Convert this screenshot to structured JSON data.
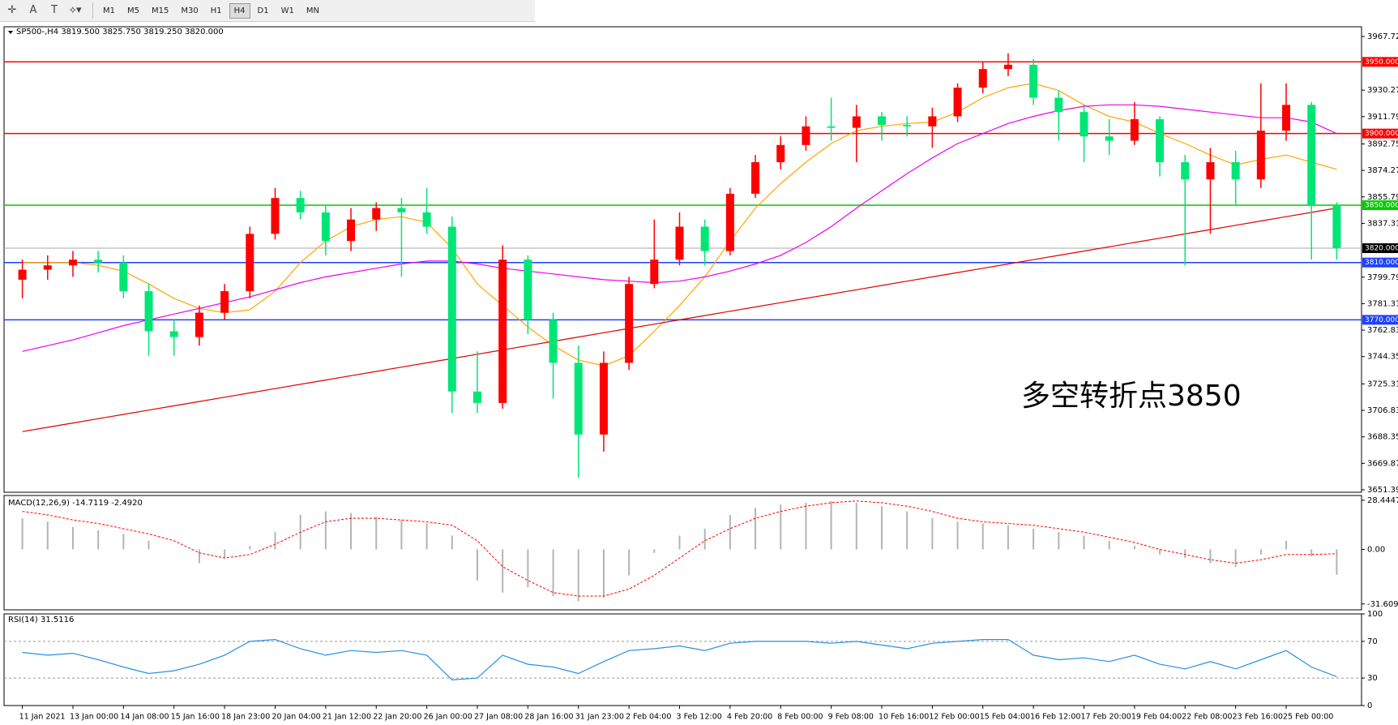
{
  "toolbar": {
    "buttons": [
      "M1",
      "M5",
      "M15",
      "M30",
      "H1",
      "H4",
      "D1",
      "W1",
      "MN"
    ],
    "active": "H4"
  },
  "chart_data": [
    {
      "type": "candlestick",
      "title": "SP500-,H4  3819.500 3825.750 3819.250 3820.000",
      "annotation": "多空转折点3850",
      "up_color": "#ff0000",
      "down_color": "#00e676",
      "categories": [
        "11 Jan 2021",
        null,
        "13 Jan 00:00",
        null,
        "14 Jan 08:00",
        null,
        "15 Jan 16:00",
        null,
        "18 Jan 23:00",
        null,
        "20 Jan 04:00",
        null,
        "21 Jan 12:00",
        null,
        "22 Jan 20:00",
        null,
        "26 Jan 00:00",
        null,
        "27 Jan 08:00",
        null,
        "28 Jan 16:00",
        null,
        "31 Jan 23:00",
        null,
        "2 Feb 04:00",
        null,
        "3 Feb 12:00",
        null,
        "4 Feb 20:00",
        null,
        "8 Feb 00:00",
        null,
        "9 Feb 08:00",
        null,
        "10 Feb 16:00",
        null,
        "12 Feb 00:00",
        null,
        "15 Feb 04:00",
        null,
        "16 Feb 12:00",
        null,
        "17 Feb 20:00",
        null,
        "19 Feb 04:00",
        null,
        "22 Feb 08:00",
        null,
        "23 Feb 16:00",
        null,
        "25 Feb 00:00",
        null,
        null
      ],
      "open": [
        3798,
        3805,
        3808,
        3812,
        3810,
        3790,
        3762,
        3758,
        3775,
        3790,
        3830,
        3855,
        3845,
        3825,
        3840,
        3848,
        3845,
        3835,
        3720,
        3712,
        3812,
        3770,
        3740,
        3690,
        3740,
        3795,
        3812,
        3835,
        3818,
        3858,
        3880,
        3892,
        3905,
        3904,
        3912,
        3906,
        3905,
        3912,
        3932,
        3945,
        3948,
        3925,
        3915,
        3898,
        3895,
        3910,
        3880,
        3868,
        3880,
        3868,
        3902,
        3920,
        3850
      ],
      "high": [
        3812,
        3815,
        3818,
        3818,
        3815,
        3795,
        3770,
        3780,
        3795,
        3835,
        3862,
        3860,
        3850,
        3848,
        3852,
        3855,
        3862,
        3842,
        3748,
        3822,
        3815,
        3775,
        3752,
        3748,
        3800,
        3840,
        3845,
        3840,
        3862,
        3885,
        3898,
        3912,
        3925,
        3920,
        3915,
        3912,
        3918,
        3935,
        3950,
        3956,
        3952,
        3930,
        3920,
        3910,
        3922,
        3912,
        3885,
        3890,
        3888,
        3935,
        3935,
        3922,
        3852
      ],
      "low": [
        3785,
        3798,
        3800,
        3803,
        3785,
        3745,
        3745,
        3752,
        3770,
        3785,
        3826,
        3840,
        3815,
        3818,
        3832,
        3800,
        3830,
        3705,
        3705,
        3708,
        3760,
        3715,
        3660,
        3678,
        3735,
        3792,
        3808,
        3808,
        3815,
        3855,
        3875,
        3888,
        3895,
        3880,
        3895,
        3898,
        3890,
        3908,
        3928,
        3940,
        3920,
        3895,
        3880,
        3885,
        3892,
        3870,
        3808,
        3830,
        3850,
        3862,
        3895,
        3812,
        3812
      ],
      "close": [
        3805,
        3808,
        3812,
        3810,
        3790,
        3762,
        3758,
        3775,
        3790,
        3830,
        3855,
        3845,
        3825,
        3840,
        3848,
        3845,
        3835,
        3720,
        3712,
        3812,
        3770,
        3740,
        3690,
        3740,
        3795,
        3812,
        3835,
        3818,
        3858,
        3880,
        3892,
        3905,
        3904,
        3912,
        3906,
        3905,
        3912,
        3932,
        3945,
        3948,
        3925,
        3915,
        3898,
        3895,
        3910,
        3880,
        3868,
        3880,
        3868,
        3902,
        3920,
        3850,
        3820
      ],
      "ma": [
        {
          "color": "#ffa500",
          "values": [
            3810,
            3810,
            3810,
            3808,
            3804,
            3795,
            3785,
            3778,
            3775,
            3777,
            3790,
            3810,
            3825,
            3835,
            3840,
            3842,
            3838,
            3820,
            3795,
            3780,
            3765,
            3752,
            3742,
            3738,
            3745,
            3762,
            3780,
            3800,
            3825,
            3848,
            3865,
            3880,
            3893,
            3902,
            3905,
            3907,
            3908,
            3915,
            3925,
            3932,
            3935,
            3930,
            3920,
            3912,
            3908,
            3900,
            3893,
            3885,
            3878,
            3882,
            3885,
            3880,
            3875
          ]
        },
        {
          "color": "#ee00ee",
          "values": [
            3748,
            3752,
            3756,
            3761,
            3766,
            3770,
            3774,
            3778,
            3782,
            3786,
            3791,
            3796,
            3800,
            3803,
            3806,
            3809,
            3811,
            3811,
            3809,
            3806,
            3804,
            3802,
            3800,
            3798,
            3797,
            3796,
            3797,
            3800,
            3804,
            3809,
            3815,
            3824,
            3835,
            3848,
            3860,
            3872,
            3883,
            3893,
            3900,
            3907,
            3912,
            3916,
            3919,
            3920,
            3920,
            3919,
            3917,
            3915,
            3913,
            3911,
            3911,
            3908,
            3900
          ]
        },
        {
          "color": "#e00000",
          "values": [
            3692,
            3695,
            3698,
            3701,
            3704,
            3707,
            3710,
            3713,
            3716,
            3719,
            3722,
            3725,
            3728,
            3731,
            3734,
            3737,
            3740,
            3743,
            3746,
            3749,
            3752,
            3755,
            3758,
            3761,
            3764,
            3767,
            3770,
            3773,
            3776,
            3779,
            3782,
            3785,
            3788,
            3791,
            3794,
            3797,
            3800,
            3803,
            3806,
            3809,
            3812,
            3815,
            3818,
            3821,
            3824,
            3827,
            3830,
            3833,
            3836,
            3839,
            3842,
            3845,
            3848
          ]
        }
      ],
      "levels": [
        {
          "value": 3950,
          "label": "3950.000",
          "color": "#ff0000"
        },
        {
          "value": 3900,
          "label": "3900.000",
          "color": "#ff0000"
        },
        {
          "value": 3850,
          "label": "3850.000",
          "color": "#00cc00"
        },
        {
          "value": 3820,
          "label": "3820.000",
          "color": "#000000"
        },
        {
          "value": 3810,
          "label": "3810.000",
          "color": "#2040ff"
        },
        {
          "value": 3770,
          "label": "3770.000",
          "color": "#2040ff"
        }
      ],
      "ylim": [
        3649.7,
        3974.5
      ],
      "yticks": [
        {
          "value": 3967.72,
          "label": "3967.720"
        },
        {
          "value": 3930.27,
          "label": "3930.270"
        },
        {
          "value": 3911.79,
          "label": "3911.790"
        },
        {
          "value": 3892.75,
          "label": "3892.750"
        },
        {
          "value": 3874.27,
          "label": "3874.270"
        },
        {
          "value": 3855.79,
          "label": "3855.790"
        },
        {
          "value": 3837.31,
          "label": "3837.310"
        },
        {
          "value": 3799.79,
          "label": "3799.790"
        },
        {
          "value": 3781.31,
          "label": "3781.310"
        },
        {
          "value": 3762.83,
          "label": "3762.830"
        },
        {
          "value": 3744.35,
          "label": "3744.350"
        },
        {
          "value": 3725.31,
          "label": "3725.310"
        },
        {
          "value": 3706.83,
          "label": "3706.830"
        },
        {
          "value": 3688.35,
          "label": "3688.350"
        },
        {
          "value": 3669.87,
          "label": "3669.870"
        },
        {
          "value": 3651.39,
          "label": "3651.390"
        }
      ]
    },
    {
      "type": "macd",
      "title": "MACD(12,26,9) -14.7119 -2.4920",
      "hist_color": "#b4b4b4",
      "signal_color": "#ff0000",
      "values": [
        18,
        16,
        13,
        11,
        9,
        5,
        0,
        -8,
        -5,
        2,
        10,
        20,
        22,
        21,
        19,
        17,
        15,
        8,
        -18,
        -25,
        -22,
        -27,
        -30,
        -28,
        -15,
        -2,
        8,
        12,
        20,
        24,
        26,
        27,
        28,
        27,
        25,
        22,
        18,
        16,
        15,
        14,
        12,
        10,
        8,
        5,
        2,
        -3,
        -5,
        -8,
        -10,
        -3,
        5,
        -4,
        -14.7
      ],
      "signal": [
        22,
        20,
        17,
        15,
        12,
        9,
        5,
        -2,
        -5,
        -3,
        3,
        10,
        16,
        18,
        18,
        17,
        16,
        14,
        5,
        -10,
        -18,
        -25,
        -27,
        -27,
        -23,
        -15,
        -5,
        5,
        12,
        18,
        22,
        25,
        27,
        28,
        27,
        25,
        22,
        18,
        16,
        15,
        14,
        12,
        10,
        7,
        4,
        0,
        -3,
        -6,
        -8,
        -6,
        -3,
        -3,
        -2.5
      ],
      "ylim": [
        -35,
        31.2
      ],
      "yticks": [
        28.4447,
        {
          "value": 0,
          "label": "0.00"
        },
        -31.6096
      ]
    },
    {
      "type": "line",
      "title": "RSI(14) 31.5116",
      "color": "#2a8fe0",
      "values": [
        58,
        55,
        57,
        50,
        42,
        35,
        38,
        45,
        55,
        70,
        72,
        62,
        55,
        60,
        58,
        60,
        55,
        28,
        30,
        55,
        45,
        42,
        35,
        48,
        60,
        62,
        65,
        60,
        68,
        70,
        70,
        70,
        68,
        70,
        66,
        62,
        68,
        70,
        72,
        72,
        55,
        50,
        52,
        48,
        55,
        45,
        40,
        48,
        40,
        50,
        60,
        42,
        31.5
      ],
      "ylim": [
        0,
        100
      ],
      "yticks": [
        100,
        70,
        30,
        0
      ],
      "levels": [
        70,
        30
      ]
    }
  ]
}
